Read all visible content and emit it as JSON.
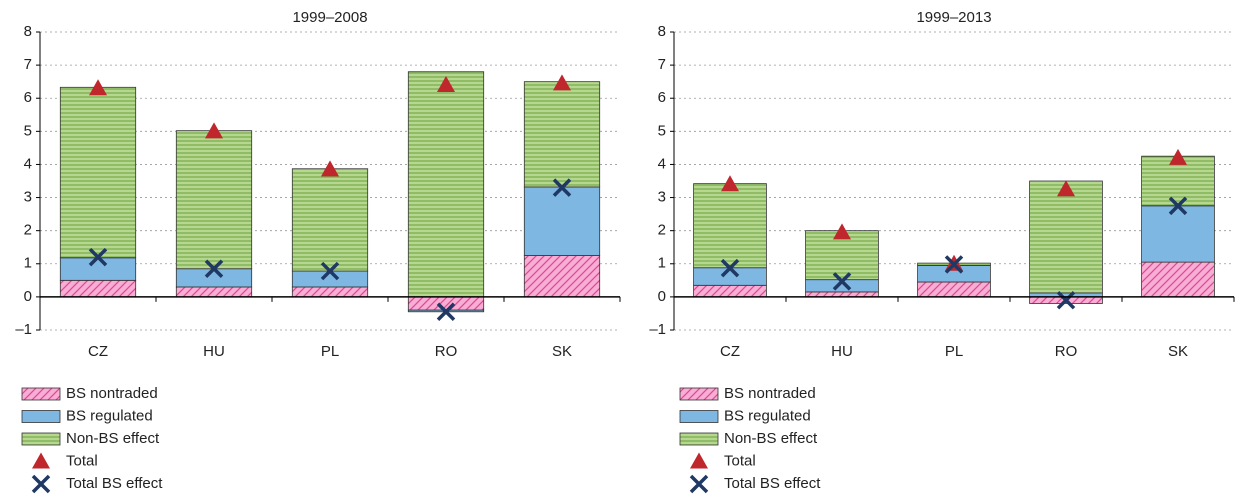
{
  "chart_data": [
    {
      "type": "bar",
      "stacked": true,
      "title": "1999–2008",
      "categories": [
        "CZ",
        "HU",
        "PL",
        "RO",
        "SK"
      ],
      "ylim": [
        -1,
        8
      ],
      "yticks": [
        {
          "value": -1,
          "label": "–1"
        },
        0,
        1,
        2,
        3,
        4,
        5,
        6,
        7,
        8
      ],
      "grid": true,
      "series": [
        {
          "name": "BS nontraded",
          "type": "bar",
          "pattern": "hatch",
          "color": "#f7aed3",
          "pattern_color": "#e2449c",
          "values": [
            0.5,
            0.3,
            0.3,
            -0.4,
            1.25
          ]
        },
        {
          "name": "BS regulated",
          "type": "bar",
          "color": "#7db7e2",
          "values": [
            0.68,
            0.55,
            0.48,
            -0.05,
            2.07
          ]
        },
        {
          "name": "Non-BS effect",
          "type": "bar",
          "pattern": "lines",
          "color": "#b5d78f",
          "pattern_color": "#6aa23c",
          "values": [
            5.15,
            4.17,
            3.09,
            6.8,
            3.18
          ]
        },
        {
          "name": "Total",
          "type": "marker",
          "marker": "triangle",
          "color": "#c0272d",
          "values": [
            6.3,
            5.0,
            3.85,
            6.4,
            6.45
          ]
        },
        {
          "name": "Total BS effect",
          "type": "marker",
          "marker": "x",
          "color": "#1f3864",
          "values": [
            1.2,
            0.85,
            0.78,
            -0.45,
            3.3
          ]
        }
      ]
    },
    {
      "type": "bar",
      "stacked": true,
      "title": "1999–2013",
      "categories": [
        "CZ",
        "HU",
        "PL",
        "RO",
        "SK"
      ],
      "ylim": [
        -1,
        8
      ],
      "yticks": [
        {
          "value": -1,
          "label": "–1"
        },
        0,
        1,
        2,
        3,
        4,
        5,
        6,
        7,
        8
      ],
      "grid": true,
      "series": [
        {
          "name": "BS nontraded",
          "type": "bar",
          "pattern": "hatch",
          "color": "#f7aed3",
          "pattern_color": "#e2449c",
          "values": [
            0.35,
            0.15,
            0.45,
            -0.2,
            1.05
          ]
        },
        {
          "name": "BS regulated",
          "type": "bar",
          "color": "#7db7e2",
          "values": [
            0.53,
            0.37,
            0.5,
            0.12,
            1.7
          ]
        },
        {
          "name": "Non-BS effect",
          "type": "bar",
          "pattern": "lines",
          "color": "#b5d78f",
          "pattern_color": "#6aa23c",
          "values": [
            2.54,
            1.48,
            0.07,
            3.38,
            1.5
          ]
        },
        {
          "name": "Total",
          "type": "marker",
          "marker": "triangle",
          "color": "#c0272d",
          "values": [
            3.4,
            1.95,
            1.0,
            3.25,
            4.2
          ]
        },
        {
          "name": "Total BS effect",
          "type": "marker",
          "marker": "x",
          "color": "#1f3864",
          "values": [
            0.87,
            0.47,
            0.98,
            -0.1,
            2.75
          ]
        }
      ]
    }
  ]
}
